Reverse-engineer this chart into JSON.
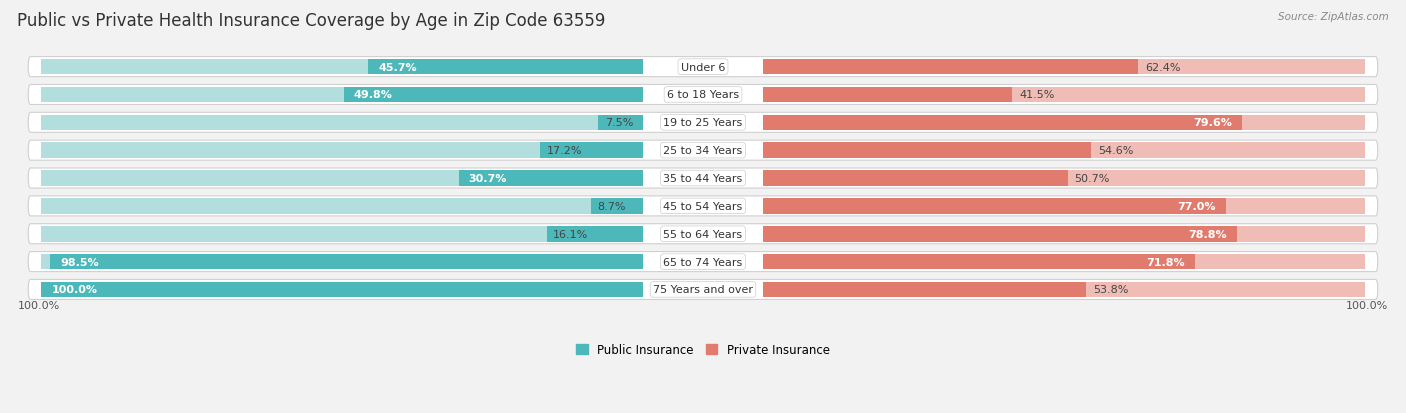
{
  "title": "Public vs Private Health Insurance Coverage by Age in Zip Code 63559",
  "source": "Source: ZipAtlas.com",
  "categories": [
    "Under 6",
    "6 to 18 Years",
    "19 to 25 Years",
    "25 to 34 Years",
    "35 to 44 Years",
    "45 to 54 Years",
    "55 to 64 Years",
    "65 to 74 Years",
    "75 Years and over"
  ],
  "public_values": [
    45.7,
    49.8,
    7.5,
    17.2,
    30.7,
    8.7,
    16.1,
    98.5,
    100.0
  ],
  "private_values": [
    62.4,
    41.5,
    79.6,
    54.6,
    50.7,
    77.0,
    78.8,
    71.8,
    53.8
  ],
  "public_color": "#4db8ba",
  "private_color": "#e07b6e",
  "public_color_light": "#b2dede",
  "private_color_light": "#f0bdb6",
  "row_bg": "#e8e8e8",
  "row_border": "#d0d0d0",
  "background_color": "#f2f2f2",
  "title_fontsize": 12,
  "label_fontsize": 8.5,
  "value_fontsize": 8,
  "max_value": 100.0,
  "legend_public": "Public Insurance",
  "legend_private": "Private Insurance"
}
